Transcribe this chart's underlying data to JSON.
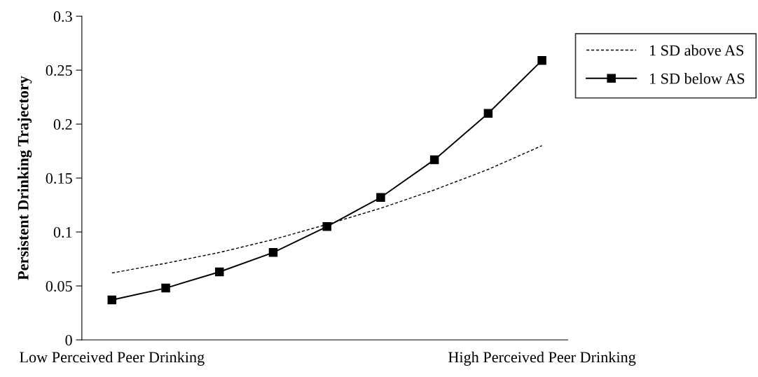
{
  "chart_data": {
    "type": "line",
    "ylabel": "Persistent Drinking Trajectory",
    "categories": [
      "Low Perceived Peer Drinking",
      null,
      null,
      null,
      null,
      null,
      null,
      null,
      "High Perceived Peer Drinking"
    ],
    "series": [
      {
        "name": "1 SD above AS",
        "color": "#000000",
        "line_style": "dashed",
        "marker": "none",
        "values": [
          0.062,
          0.071,
          0.081,
          0.093,
          0.107,
          0.122,
          0.139,
          0.158,
          0.18
        ]
      },
      {
        "name": "1 SD below AS",
        "color": "#000000",
        "line_style": "solid",
        "marker": "square",
        "values": [
          0.037,
          0.048,
          0.063,
          0.081,
          0.105,
          0.132,
          0.167,
          0.21,
          0.259
        ]
      }
    ],
    "ylim": [
      0,
      0.3
    ],
    "yticks": [
      0,
      0.05,
      0.1,
      0.15,
      0.2,
      0.25,
      0.3
    ],
    "grid": false,
    "legend": "top right"
  }
}
